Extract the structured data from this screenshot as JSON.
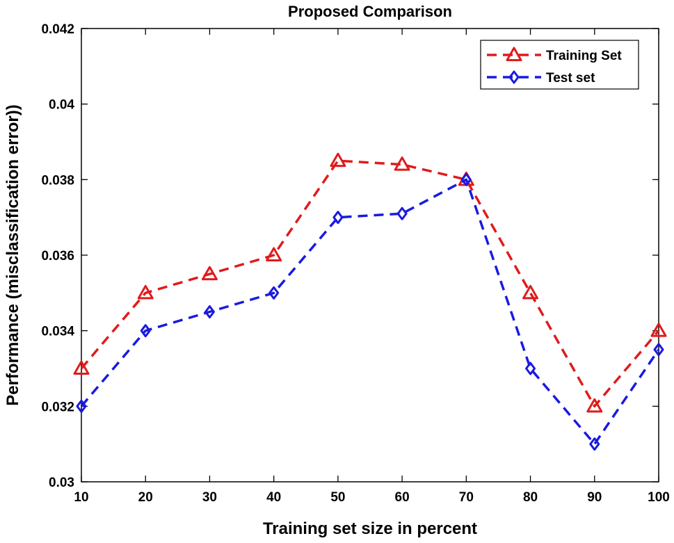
{
  "chart_data": {
    "type": "line",
    "title": "Proposed Comparison",
    "xlabel": "Training set size in percent",
    "ylabel": "Performance (misclassification error))",
    "x": [
      10,
      20,
      30,
      40,
      50,
      60,
      70,
      80,
      90,
      100
    ],
    "xlim": [
      10,
      100
    ],
    "ylim": [
      0.03,
      0.042
    ],
    "xticks": [
      "10",
      "20",
      "30",
      "40",
      "50",
      "60",
      "70",
      "80",
      "90",
      "100"
    ],
    "yticks": [
      "0.03",
      "0.032",
      "0.034",
      "0.036",
      "0.038",
      "0.04",
      "0.042"
    ],
    "ytick_values": [
      0.03,
      0.032,
      0.034,
      0.036,
      0.038,
      0.04,
      0.042
    ],
    "grid": false,
    "legend_position": "top-right",
    "series": [
      {
        "name": "Training Set",
        "color": "#e01b1b",
        "marker": "triangle",
        "line_style": "dashed",
        "values": [
          0.033,
          0.035,
          0.0355,
          0.036,
          0.0385,
          0.0384,
          0.038,
          0.035,
          0.032,
          0.034
        ]
      },
      {
        "name": "Test set",
        "color": "#1a1ae0",
        "marker": "diamond",
        "line_style": "dashed",
        "values": [
          0.032,
          0.034,
          0.0345,
          0.035,
          0.037,
          0.0371,
          0.038,
          0.033,
          0.031,
          0.0335
        ]
      }
    ]
  }
}
